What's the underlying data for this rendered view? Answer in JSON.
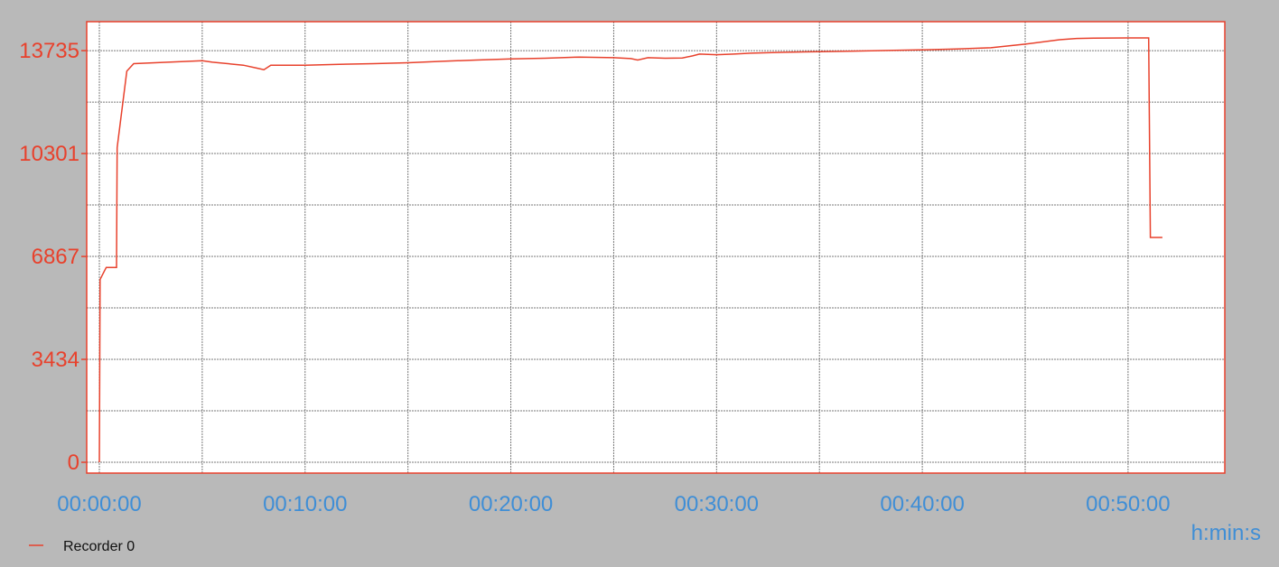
{
  "chart_data": {
    "type": "line",
    "x_unit": "h:min:s",
    "y_ticks": [
      "13735",
      "10301",
      "6867",
      "3434",
      "0"
    ],
    "y_tick_values": [
      13735,
      10301,
      6867,
      3434,
      0
    ],
    "x_ticks": [
      "00:00:00",
      "00:10:00",
      "00:20:00",
      "00:30:00",
      "00:40:00",
      "00:50:00"
    ],
    "x_tick_values_s": [
      0,
      600,
      1200,
      1800,
      2400,
      3000
    ],
    "xlim_s": [
      0,
      3240
    ],
    "ylim": [
      0,
      14400
    ],
    "grid": true,
    "legend_position": "bottom-left",
    "series": [
      {
        "name": "Recorder 0",
        "color": "#e8412c",
        "points": [
          [
            0,
            0
          ],
          [
            2,
            6100
          ],
          [
            20,
            6500
          ],
          [
            50,
            6500
          ],
          [
            52,
            10500
          ],
          [
            80,
            13050
          ],
          [
            100,
            13300
          ],
          [
            200,
            13350
          ],
          [
            300,
            13400
          ],
          [
            330,
            13350
          ],
          [
            420,
            13250
          ],
          [
            460,
            13150
          ],
          [
            480,
            13100
          ],
          [
            500,
            13250
          ],
          [
            600,
            13250
          ],
          [
            700,
            13280
          ],
          [
            800,
            13300
          ],
          [
            900,
            13330
          ],
          [
            1000,
            13380
          ],
          [
            1100,
            13420
          ],
          [
            1200,
            13460
          ],
          [
            1300,
            13480
          ],
          [
            1400,
            13520
          ],
          [
            1500,
            13500
          ],
          [
            1550,
            13470
          ],
          [
            1570,
            13420
          ],
          [
            1600,
            13500
          ],
          [
            1650,
            13480
          ],
          [
            1700,
            13490
          ],
          [
            1730,
            13560
          ],
          [
            1750,
            13620
          ],
          [
            1800,
            13600
          ],
          [
            1850,
            13620
          ],
          [
            1900,
            13650
          ],
          [
            2000,
            13680
          ],
          [
            2100,
            13700
          ],
          [
            2200,
            13720
          ],
          [
            2300,
            13740
          ],
          [
            2400,
            13760
          ],
          [
            2500,
            13790
          ],
          [
            2600,
            13830
          ],
          [
            2700,
            13950
          ],
          [
            2800,
            14100
          ],
          [
            2850,
            14140
          ],
          [
            2900,
            14150
          ],
          [
            3000,
            14160
          ],
          [
            3060,
            14160
          ],
          [
            3065,
            7500
          ],
          [
            3100,
            7500
          ]
        ]
      }
    ]
  }
}
